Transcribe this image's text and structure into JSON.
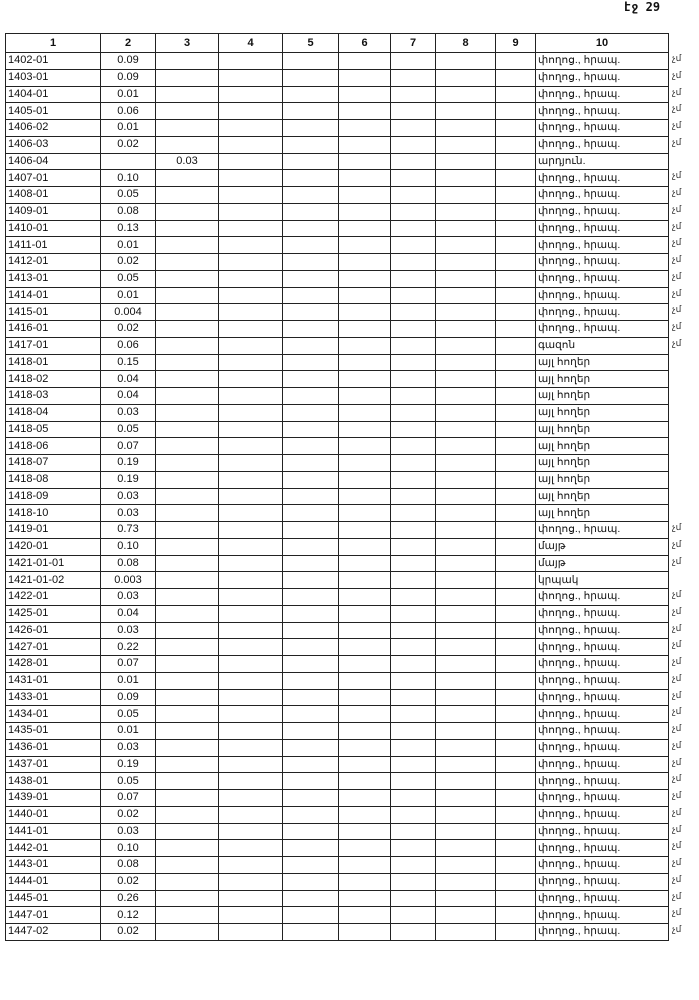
{
  "page_number": "էջ 29",
  "columns": [
    "1",
    "2",
    "3",
    "4",
    "5",
    "6",
    "7",
    "8",
    "9",
    "10"
  ],
  "rows": [
    {
      "code": "1402-01",
      "c2": "0.09",
      "c3": "",
      "c10": "փողոց., հրապ.",
      "mark": "չմ"
    },
    {
      "code": "1403-01",
      "c2": "0.09",
      "c3": "",
      "c10": "փողոց., հրապ.",
      "mark": "չմ"
    },
    {
      "code": "1404-01",
      "c2": "0.01",
      "c3": "",
      "c10": "փողոց., հրապ.",
      "mark": "չմ"
    },
    {
      "code": "1405-01",
      "c2": "0.06",
      "c3": "",
      "c10": "փողոց., հրապ.",
      "mark": "չմ"
    },
    {
      "code": "1406-02",
      "c2": "0.01",
      "c3": "",
      "c10": "փողոց., հրապ.",
      "mark": "չմ"
    },
    {
      "code": "1406-03",
      "c2": "0.02",
      "c3": "",
      "c10": "փողոց., հրապ.",
      "mark": "չմ"
    },
    {
      "code": "1406-04",
      "c2": "",
      "c3": "0.03",
      "c10": "արդյուն.",
      "mark": ""
    },
    {
      "code": "1407-01",
      "c2": "0.10",
      "c3": "",
      "c10": "փողոց., հրապ.",
      "mark": "չմ"
    },
    {
      "code": "1408-01",
      "c2": "0.05",
      "c3": "",
      "c10": "փողոց., հրապ.",
      "mark": "չմ"
    },
    {
      "code": "1409-01",
      "c2": "0.08",
      "c3": "",
      "c10": "փողոց., հրապ.",
      "mark": "չմ"
    },
    {
      "code": "1410-01",
      "c2": "0.13",
      "c3": "",
      "c10": "փողոց., հրապ.",
      "mark": "չմ"
    },
    {
      "code": "1411-01",
      "c2": "0.01",
      "c3": "",
      "c10": "փողոց., հրապ.",
      "mark": "չմ"
    },
    {
      "code": "1412-01",
      "c2": "0.02",
      "c3": "",
      "c10": "փողոց., հրապ.",
      "mark": "չմ"
    },
    {
      "code": "1413-01",
      "c2": "0.05",
      "c3": "",
      "c10": "փողոց., հրապ.",
      "mark": "չմ"
    },
    {
      "code": "1414-01",
      "c2": "0.01",
      "c3": "",
      "c10": "փողոց., հրապ.",
      "mark": "չմ"
    },
    {
      "code": "1415-01",
      "c2": "0.004",
      "c3": "",
      "c10": "փողոց., հրապ.",
      "mark": "չմ"
    },
    {
      "code": "1416-01",
      "c2": "0.02",
      "c3": "",
      "c10": "փողոց., հրապ.",
      "mark": "չմ"
    },
    {
      "code": "1417-01",
      "c2": "0.06",
      "c3": "",
      "c10": "գազոն",
      "mark": "չմ"
    },
    {
      "code": "1418-01",
      "c2": "0.15",
      "c3": "",
      "c10": "այլ հողեր",
      "mark": ""
    },
    {
      "code": "1418-02",
      "c2": "0.04",
      "c3": "",
      "c10": "այլ հողեր",
      "mark": ""
    },
    {
      "code": "1418-03",
      "c2": "0.04",
      "c3": "",
      "c10": "այլ հողեր",
      "mark": ""
    },
    {
      "code": "1418-04",
      "c2": "0.03",
      "c3": "",
      "c10": "այլ հողեր",
      "mark": ""
    },
    {
      "code": "1418-05",
      "c2": "0.05",
      "c3": "",
      "c10": "այլ հողեր",
      "mark": ""
    },
    {
      "code": "1418-06",
      "c2": "0.07",
      "c3": "",
      "c10": "այլ հողեր",
      "mark": ""
    },
    {
      "code": "1418-07",
      "c2": "0.19",
      "c3": "",
      "c10": "այլ հողեր",
      "mark": ""
    },
    {
      "code": "1418-08",
      "c2": "0.19",
      "c3": "",
      "c10": "այլ հողեր",
      "mark": ""
    },
    {
      "code": "1418-09",
      "c2": "0.03",
      "c3": "",
      "c10": "այլ հողեր",
      "mark": ""
    },
    {
      "code": "1418-10",
      "c2": "0.03",
      "c3": "",
      "c10": "այլ հողեր",
      "mark": ""
    },
    {
      "code": "1419-01",
      "c2": "0.73",
      "c3": "",
      "c10": "փողոց., հրապ.",
      "mark": "չմ"
    },
    {
      "code": "1420-01",
      "c2": "0.10",
      "c3": "",
      "c10": "մայթ",
      "mark": "չմ"
    },
    {
      "code": "1421-01-01",
      "c2": "0.08",
      "c3": "",
      "c10": "մայթ",
      "mark": "չմ"
    },
    {
      "code": "1421-01-02",
      "c2": "0.003",
      "c3": "",
      "c10": "կրպակ",
      "mark": ""
    },
    {
      "code": "1422-01",
      "c2": "0.03",
      "c3": "",
      "c10": "փողոց., հրապ.",
      "mark": "չմ"
    },
    {
      "code": "1425-01",
      "c2": "0.04",
      "c3": "",
      "c10": "փողոց., հրապ.",
      "mark": "չմ"
    },
    {
      "code": "1426-01",
      "c2": "0.03",
      "c3": "",
      "c10": "փողոց., հրապ.",
      "mark": "չմ"
    },
    {
      "code": "1427-01",
      "c2": "0.22",
      "c3": "",
      "c10": "փողոց., հրապ.",
      "mark": "չմ"
    },
    {
      "code": "1428-01",
      "c2": "0.07",
      "c3": "",
      "c10": "փողոց., հրապ.",
      "mark": "չմ"
    },
    {
      "code": "1431-01",
      "c2": "0.01",
      "c3": "",
      "c10": "փողոց., հրապ.",
      "mark": "չմ"
    },
    {
      "code": "1433-01",
      "c2": "0.09",
      "c3": "",
      "c10": "փողոց., հրապ.",
      "mark": "չմ"
    },
    {
      "code": "1434-01",
      "c2": "0.05",
      "c3": "",
      "c10": "փողոց., հրապ.",
      "mark": "չմ"
    },
    {
      "code": "1435-01",
      "c2": "0.01",
      "c3": "",
      "c10": "փողոց., հրապ.",
      "mark": "չմ"
    },
    {
      "code": "1436-01",
      "c2": "0.03",
      "c3": "",
      "c10": "փողոց., հրապ.",
      "mark": "չմ"
    },
    {
      "code": "1437-01",
      "c2": "0.19",
      "c3": "",
      "c10": "փողոց., հրապ.",
      "mark": "չմ"
    },
    {
      "code": "1438-01",
      "c2": "0.05",
      "c3": "",
      "c10": "փողոց., հրապ.",
      "mark": "չմ"
    },
    {
      "code": "1439-01",
      "c2": "0.07",
      "c3": "",
      "c10": "փողոց., հրապ.",
      "mark": "չմ"
    },
    {
      "code": "1440-01",
      "c2": "0.02",
      "c3": "",
      "c10": "փողոց., հրապ.",
      "mark": "չմ"
    },
    {
      "code": "1441-01",
      "c2": "0.03",
      "c3": "",
      "c10": "փողոց., հրապ.",
      "mark": "չմ"
    },
    {
      "code": "1442-01",
      "c2": "0.10",
      "c3": "",
      "c10": "փողոց., հրապ.",
      "mark": "չմ"
    },
    {
      "code": "1443-01",
      "c2": "0.08",
      "c3": "",
      "c10": "փողոց., հրապ.",
      "mark": "չմ"
    },
    {
      "code": "1444-01",
      "c2": "0.02",
      "c3": "",
      "c10": "փողոց., հրապ.",
      "mark": "չմ"
    },
    {
      "code": "1445-01",
      "c2": "0.26",
      "c3": "",
      "c10": "փողոց., հրապ.",
      "mark": "չմ"
    },
    {
      "code": "1447-01",
      "c2": "0.12",
      "c3": "",
      "c10": "փողոց., հրապ.",
      "mark": "չմ"
    },
    {
      "code": "1447-02",
      "c2": "0.02",
      "c3": "",
      "c10": "փողոց., հրապ.",
      "mark": "չմ"
    }
  ]
}
